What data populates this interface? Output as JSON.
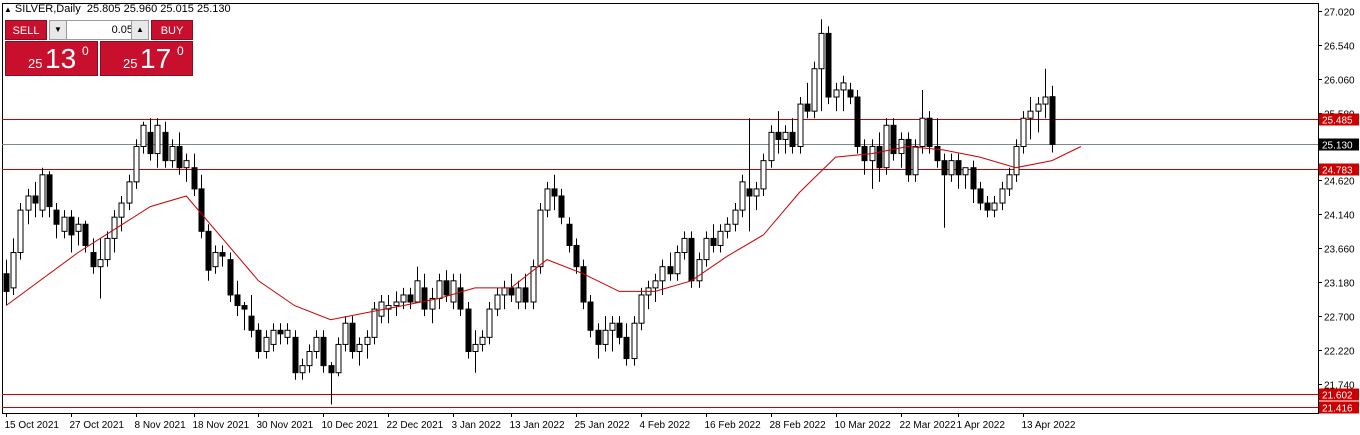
{
  "header": {
    "symbol_label": "SILVER,Daily",
    "ohlc": "25.805 25.960 25.015 25.130"
  },
  "trade_panel": {
    "sell_label": "SELL",
    "buy_label": "BUY",
    "lot_value": "0.05",
    "sell_price": {
      "prefix": "25",
      "big": "13",
      "sup": "0"
    },
    "buy_price": {
      "prefix": "25",
      "big": "17",
      "sup": "0"
    }
  },
  "colors": {
    "bull": "#ffffff",
    "bear": "#000000",
    "ma": "#cc0000",
    "level": "#cc0000",
    "current": "#7a8a8a"
  },
  "chart_data": {
    "type": "candlestick",
    "title": "",
    "xlabel": "",
    "ylabel": "",
    "ylim": [
      21.33,
      27.13
    ],
    "y_ticks": [
      "27.020",
      "26.540",
      "26.060",
      "25.580",
      "25.100",
      "24.620",
      "24.140",
      "23.660",
      "23.180",
      "22.700",
      "22.220",
      "21.740"
    ],
    "x_tick_labels": [
      "15 Oct 2021",
      "27 Oct 2021",
      "8 Nov 2021",
      "18 Nov 2021",
      "30 Nov 2021",
      "10 Dec 2021",
      "22 Dec 2021",
      "3 Jan 2022",
      "13 Jan 2022",
      "25 Jan 2022",
      "4 Feb 2022",
      "16 Feb 2022",
      "28 Feb 2022",
      "10 Mar 2022",
      "22 Mar 2022",
      "1 Apr 2022",
      "13 Apr 2022"
    ],
    "levels": [
      {
        "label": "25.485",
        "value": 25.485
      },
      {
        "label": "24.783",
        "value": 24.783
      },
      {
        "label": "21.602",
        "value": 21.602
      },
      {
        "label": "21.416",
        "value": 21.416
      }
    ],
    "current_price": {
      "label": "25.130",
      "value": 25.13
    },
    "candles": [
      [
        23.3,
        23.5,
        22.85,
        23.05
      ],
      [
        23.1,
        23.8,
        23.0,
        23.6
      ],
      [
        23.6,
        24.3,
        23.5,
        24.2
      ],
      [
        24.2,
        24.5,
        24.0,
        24.4
      ],
      [
        24.4,
        24.6,
        24.1,
        24.3
      ],
      [
        24.2,
        24.8,
        24.1,
        24.7
      ],
      [
        24.7,
        24.75,
        24.1,
        24.25
      ],
      [
        24.2,
        24.3,
        23.8,
        24.0
      ],
      [
        23.9,
        24.2,
        23.8,
        24.1
      ],
      [
        24.1,
        24.2,
        23.6,
        23.85
      ],
      [
        23.9,
        24.1,
        23.7,
        24.0
      ],
      [
        24.0,
        24.05,
        23.6,
        23.7
      ],
      [
        23.6,
        23.8,
        23.3,
        23.4
      ],
      [
        23.4,
        23.8,
        22.95,
        23.5
      ],
      [
        23.5,
        23.9,
        23.4,
        23.8
      ],
      [
        23.8,
        24.2,
        23.6,
        24.1
      ],
      [
        24.1,
        24.4,
        23.9,
        24.3
      ],
      [
        24.3,
        24.7,
        24.2,
        24.6
      ],
      [
        24.6,
        25.2,
        24.5,
        25.1
      ],
      [
        25.1,
        25.45,
        25.0,
        25.4
      ],
      [
        25.3,
        25.5,
        24.9,
        25.0
      ],
      [
        25.0,
        25.5,
        24.8,
        25.4
      ],
      [
        25.3,
        25.45,
        24.8,
        24.9
      ],
      [
        24.9,
        25.2,
        24.8,
        25.1
      ],
      [
        25.1,
        25.3,
        24.7,
        24.8
      ],
      [
        24.8,
        25.0,
        24.6,
        24.9
      ],
      [
        24.8,
        25.0,
        24.4,
        24.5
      ],
      [
        24.5,
        24.7,
        23.8,
        23.9
      ],
      [
        23.9,
        24.0,
        23.2,
        23.35
      ],
      [
        23.4,
        23.7,
        23.3,
        23.6
      ],
      [
        23.6,
        23.7,
        23.4,
        23.55
      ],
      [
        23.5,
        23.6,
        22.9,
        23.0
      ],
      [
        23.0,
        23.2,
        22.7,
        22.85
      ],
      [
        22.85,
        22.9,
        22.5,
        22.8
      ],
      [
        22.7,
        23.0,
        22.4,
        22.5
      ],
      [
        22.5,
        22.6,
        22.1,
        22.2
      ],
      [
        22.2,
        22.5,
        22.1,
        22.4
      ],
      [
        22.3,
        22.6,
        22.2,
        22.5
      ],
      [
        22.5,
        22.6,
        22.3,
        22.45
      ],
      [
        22.4,
        22.6,
        22.3,
        22.5
      ],
      [
        22.4,
        22.5,
        21.8,
        21.9
      ],
      [
        21.9,
        22.1,
        21.8,
        22.0
      ],
      [
        22.0,
        22.3,
        21.9,
        22.2
      ],
      [
        22.2,
        22.5,
        22.1,
        22.4
      ],
      [
        22.4,
        22.5,
        21.9,
        22.0
      ],
      [
        22.0,
        22.05,
        21.45,
        21.9
      ],
      [
        21.9,
        22.4,
        21.85,
        22.3
      ],
      [
        22.3,
        22.7,
        22.2,
        22.6
      ],
      [
        22.6,
        22.7,
        22.1,
        22.2
      ],
      [
        22.2,
        22.4,
        22.0,
        22.3
      ],
      [
        22.3,
        22.5,
        22.1,
        22.4
      ],
      [
        22.4,
        22.9,
        22.3,
        22.8
      ],
      [
        22.7,
        23.0,
        22.6,
        22.9
      ],
      [
        22.8,
        23.0,
        22.6,
        22.85
      ],
      [
        22.85,
        23.05,
        22.7,
        22.9
      ],
      [
        22.9,
        23.1,
        22.8,
        23.0
      ],
      [
        23.0,
        23.1,
        22.8,
        22.9
      ],
      [
        22.9,
        23.4,
        22.9,
        23.2
      ],
      [
        23.1,
        23.3,
        22.7,
        22.8
      ],
      [
        22.8,
        23.1,
        22.6,
        22.95
      ],
      [
        22.95,
        23.3,
        22.8,
        23.2
      ],
      [
        23.2,
        23.35,
        22.9,
        23.0
      ],
      [
        22.9,
        23.3,
        22.8,
        23.2
      ],
      [
        23.1,
        23.3,
        22.7,
        22.8
      ],
      [
        22.8,
        22.9,
        22.1,
        22.2
      ],
      [
        22.2,
        22.5,
        21.9,
        22.3
      ],
      [
        22.3,
        22.5,
        22.2,
        22.4
      ],
      [
        22.4,
        22.9,
        22.3,
        22.8
      ],
      [
        22.8,
        23.1,
        22.7,
        23.0
      ],
      [
        23.0,
        23.2,
        22.8,
        23.1
      ],
      [
        23.1,
        23.3,
        22.9,
        23.0
      ],
      [
        22.9,
        23.2,
        22.8,
        23.1
      ],
      [
        23.1,
        23.3,
        22.8,
        22.9
      ],
      [
        22.9,
        23.5,
        22.8,
        23.4
      ],
      [
        23.4,
        24.3,
        23.3,
        24.2
      ],
      [
        24.2,
        24.6,
        24.1,
        24.5
      ],
      [
        24.5,
        24.7,
        24.2,
        24.4
      ],
      [
        24.4,
        24.5,
        24.0,
        24.1
      ],
      [
        24.0,
        24.1,
        23.6,
        23.7
      ],
      [
        23.7,
        23.8,
        23.3,
        23.4
      ],
      [
        23.4,
        23.5,
        22.8,
        22.9
      ],
      [
        22.9,
        23.0,
        22.4,
        22.5
      ],
      [
        22.5,
        22.6,
        22.1,
        22.3
      ],
      [
        22.3,
        22.7,
        22.2,
        22.5
      ],
      [
        22.5,
        22.7,
        22.2,
        22.6
      ],
      [
        22.6,
        22.7,
        22.3,
        22.4
      ],
      [
        22.4,
        22.6,
        22.0,
        22.1
      ],
      [
        22.1,
        22.7,
        22.0,
        22.6
      ],
      [
        22.6,
        23.1,
        22.5,
        23.0
      ],
      [
        23.0,
        23.2,
        22.8,
        23.1
      ],
      [
        23.1,
        23.3,
        22.9,
        23.2
      ],
      [
        23.2,
        23.5,
        23.0,
        23.4
      ],
      [
        23.4,
        23.6,
        23.2,
        23.3
      ],
      [
        23.3,
        23.7,
        23.2,
        23.6
      ],
      [
        23.6,
        23.9,
        23.5,
        23.8
      ],
      [
        23.8,
        23.9,
        23.1,
        23.2
      ],
      [
        23.2,
        23.6,
        23.1,
        23.5
      ],
      [
        23.5,
        23.9,
        23.4,
        23.8
      ],
      [
        23.8,
        24.0,
        23.6,
        23.7
      ],
      [
        23.7,
        24.0,
        23.6,
        23.9
      ],
      [
        23.9,
        24.1,
        23.8,
        24.0
      ],
      [
        24.0,
        24.3,
        23.9,
        24.2
      ],
      [
        24.2,
        24.7,
        24.1,
        24.6
      ],
      [
        24.5,
        25.5,
        23.9,
        24.4
      ],
      [
        24.4,
        24.6,
        24.2,
        24.5
      ],
      [
        24.5,
        25.0,
        24.4,
        24.9
      ],
      [
        24.9,
        25.4,
        24.8,
        25.3
      ],
      [
        25.3,
        25.6,
        25.0,
        25.2
      ],
      [
        25.2,
        25.4,
        25.0,
        25.3
      ],
      [
        25.3,
        25.5,
        25.0,
        25.1
      ],
      [
        25.1,
        25.8,
        25.0,
        25.7
      ],
      [
        25.7,
        26.0,
        25.5,
        25.6
      ],
      [
        25.6,
        26.3,
        25.5,
        26.2
      ],
      [
        26.2,
        26.9,
        25.6,
        26.7
      ],
      [
        26.7,
        26.8,
        25.7,
        25.8
      ],
      [
        25.8,
        26.0,
        25.6,
        25.9
      ],
      [
        25.9,
        26.1,
        25.6,
        26.0
      ],
      [
        25.9,
        26.0,
        25.7,
        25.8
      ],
      [
        25.8,
        25.9,
        25.0,
        25.1
      ],
      [
        25.1,
        25.2,
        24.7,
        24.9
      ],
      [
        24.9,
        25.2,
        24.5,
        25.1
      ],
      [
        25.1,
        25.3,
        24.6,
        24.8
      ],
      [
        24.8,
        25.5,
        24.7,
        25.4
      ],
      [
        25.4,
        25.5,
        24.9,
        25.0
      ],
      [
        25.0,
        25.3,
        24.8,
        25.2
      ],
      [
        25.2,
        25.3,
        24.6,
        24.7
      ],
      [
        24.7,
        25.2,
        24.6,
        25.1
      ],
      [
        25.1,
        25.9,
        25.0,
        25.5
      ],
      [
        25.5,
        25.6,
        25.0,
        25.1
      ],
      [
        25.1,
        25.5,
        24.8,
        24.9
      ],
      [
        24.9,
        25.0,
        23.95,
        24.7
      ],
      [
        24.7,
        25.0,
        24.6,
        24.9
      ],
      [
        24.9,
        25.0,
        24.5,
        24.7
      ],
      [
        24.7,
        24.8,
        24.5,
        24.8
      ],
      [
        24.8,
        24.9,
        24.3,
        24.5
      ],
      [
        24.5,
        24.6,
        24.2,
        24.3
      ],
      [
        24.3,
        24.4,
        24.1,
        24.2
      ],
      [
        24.2,
        24.4,
        24.1,
        24.3
      ],
      [
        24.3,
        24.6,
        24.2,
        24.5
      ],
      [
        24.5,
        24.8,
        24.4,
        24.7
      ],
      [
        24.7,
        25.2,
        24.6,
        25.1
      ],
      [
        25.1,
        25.6,
        25.0,
        25.5
      ],
      [
        25.5,
        25.8,
        25.2,
        25.6
      ],
      [
        25.6,
        25.8,
        25.3,
        25.7
      ],
      [
        25.7,
        26.2,
        25.5,
        25.8
      ],
      [
        25.805,
        25.96,
        25.015,
        25.13
      ]
    ],
    "ma": {
      "x": [
        0,
        10,
        20,
        25,
        30,
        35,
        40,
        45,
        50,
        55,
        60,
        65,
        70,
        75,
        80,
        85,
        90,
        95,
        100,
        105,
        110,
        115,
        120,
        125,
        130,
        135,
        140,
        145,
        149
      ],
      "y": [
        22.85,
        23.6,
        24.25,
        24.4,
        23.8,
        23.2,
        22.85,
        22.65,
        22.75,
        22.85,
        22.95,
        23.1,
        23.1,
        23.5,
        23.3,
        23.05,
        23.05,
        23.2,
        23.55,
        23.85,
        24.45,
        24.95,
        25.0,
        25.1,
        25.05,
        24.95,
        24.8,
        24.9,
        25.1
      ]
    }
  }
}
